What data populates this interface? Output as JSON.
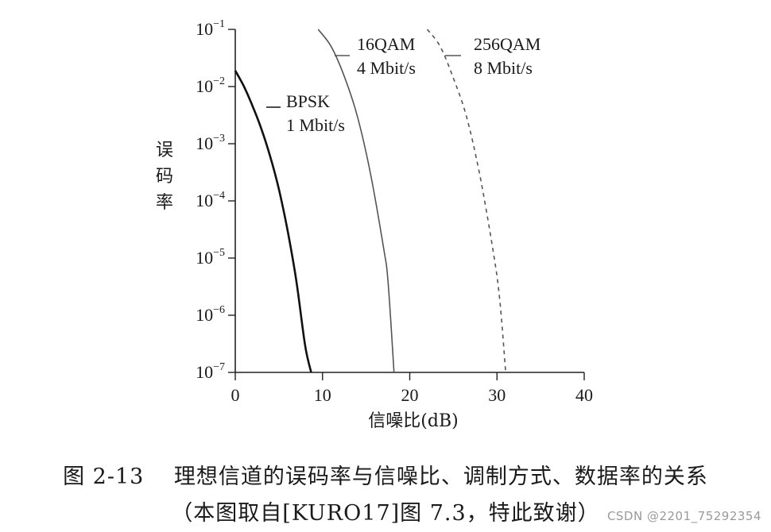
{
  "chart_data": {
    "type": "line",
    "xlabel": "信噪比(dB)",
    "ylabel": "误码率",
    "x_ticks": [
      "0",
      "10",
      "20",
      "30",
      "40"
    ],
    "xlim": [
      0,
      40
    ],
    "y_scale": "log",
    "ylim": [
      1e-07,
      0.1
    ],
    "y_ticks": [
      {
        "base": "10",
        "exp": "−1"
      },
      {
        "base": "10",
        "exp": "−2"
      },
      {
        "base": "10",
        "exp": "−3"
      },
      {
        "base": "10",
        "exp": "−4"
      },
      {
        "base": "10",
        "exp": "−5"
      },
      {
        "base": "10",
        "exp": "−6"
      },
      {
        "base": "10",
        "exp": "−7"
      }
    ],
    "grid": false,
    "series": [
      {
        "name": "BPSK",
        "rate": "1 Mbit/s",
        "line_style": "solid",
        "color": "#111111",
        "x": [
          0,
          1,
          2,
          3,
          4,
          5,
          6,
          7,
          8,
          8.7
        ],
        "y": [
          0.019,
          0.01,
          0.0045,
          0.0018,
          0.0006,
          0.00016,
          3e-05,
          4e-06,
          3e-07,
          1e-07
        ]
      },
      {
        "name": "16QAM",
        "rate": "4 Mbit/s",
        "line_style": "solid",
        "color": "#555555",
        "x": [
          9.5,
          11,
          12.5,
          14,
          15.5,
          17,
          17.5,
          18.2
        ],
        "y": [
          0.1,
          0.05,
          0.015,
          0.003,
          0.0003,
          1.5e-05,
          4e-06,
          1e-07
        ]
      },
      {
        "name": "256QAM",
        "rate": "8 Mbit/s",
        "line_style": "dashed",
        "color": "#555555",
        "x": [
          22,
          23.5,
          25,
          26.5,
          28,
          29.5,
          30.3,
          31
        ],
        "y": [
          0.1,
          0.05,
          0.014,
          0.003,
          0.0003,
          1.5e-05,
          2e-06,
          1e-07
        ]
      }
    ]
  },
  "caption": {
    "line1": "图 2-13　 理想信道的误码率与信噪比、调制方式、数据率的关系",
    "line2": "（本图取自[KURO17]图 7.3，特此致谢）"
  },
  "watermark": "CSDN @2201_75292354"
}
